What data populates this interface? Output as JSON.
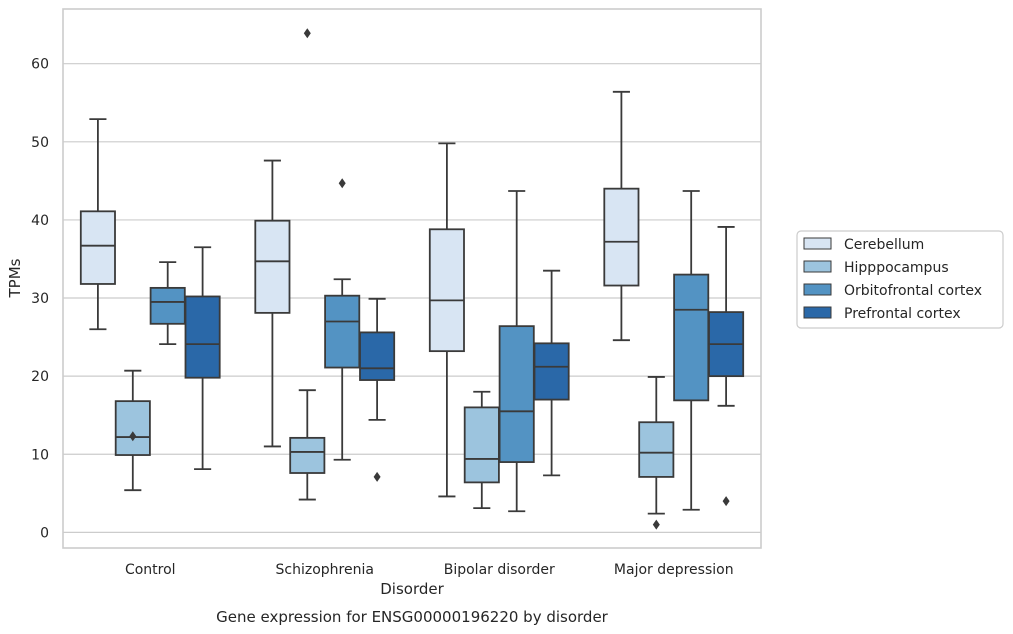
{
  "chart_data": {
    "type": "box",
    "title": "",
    "caption": "Gene expression for ENSG00000196220 by disorder",
    "xlabel": "Disorder",
    "ylabel": "TPMs",
    "ylim": [
      -2,
      67
    ],
    "yticks": [
      0,
      10,
      20,
      30,
      40,
      50,
      60
    ],
    "grid": "horizontal",
    "legend_position": "right",
    "categories": [
      "Control",
      "Schizophrenia",
      "Bipolar disorder",
      "Major depression"
    ],
    "series": [
      {
        "name": "Cerebellum",
        "color": "#d8e5f3",
        "boxes": [
          {
            "whisker_low": 26.0,
            "q1": 31.8,
            "median": 36.7,
            "q3": 41.1,
            "whisker_high": 52.9,
            "outliers": []
          },
          {
            "whisker_low": 11.0,
            "q1": 28.1,
            "median": 34.7,
            "q3": 39.9,
            "whisker_high": 47.6,
            "outliers": []
          },
          {
            "whisker_low": 4.6,
            "q1": 23.2,
            "median": 29.7,
            "q3": 38.8,
            "whisker_high": 49.8,
            "outliers": []
          },
          {
            "whisker_low": 24.6,
            "q1": 31.6,
            "median": 37.2,
            "q3": 44.0,
            "whisker_high": 56.4,
            "outliers": []
          }
        ]
      },
      {
        "name": "Hipppocampus",
        "color": "#9cc4de",
        "boxes": [
          {
            "whisker_low": 5.4,
            "q1": 9.9,
            "median": 12.2,
            "q3": 16.8,
            "whisker_high": 20.7,
            "outliers": [
              12.3
            ]
          },
          {
            "whisker_low": 4.2,
            "q1": 7.6,
            "median": 10.3,
            "q3": 12.1,
            "whisker_high": 18.2,
            "outliers": [
              63.9
            ]
          },
          {
            "whisker_low": 3.1,
            "q1": 6.4,
            "median": 9.4,
            "q3": 16.0,
            "whisker_high": 18.0,
            "outliers": []
          },
          {
            "whisker_low": 2.4,
            "q1": 7.1,
            "median": 10.2,
            "q3": 14.1,
            "whisker_high": 19.9,
            "outliers": [
              1.0
            ]
          }
        ]
      },
      {
        "name": "Orbitofrontal cortex",
        "color": "#5393c3",
        "boxes": [
          {
            "whisker_low": 24.1,
            "q1": 26.7,
            "median": 29.5,
            "q3": 31.3,
            "whisker_high": 34.6,
            "outliers": []
          },
          {
            "whisker_low": 9.3,
            "q1": 21.1,
            "median": 27.0,
            "q3": 30.3,
            "whisker_high": 32.4,
            "outliers": [
              44.7
            ]
          },
          {
            "whisker_low": 2.7,
            "q1": 9.0,
            "median": 15.5,
            "q3": 26.4,
            "whisker_high": 43.7,
            "outliers": []
          },
          {
            "whisker_low": 2.9,
            "q1": 16.9,
            "median": 28.5,
            "q3": 33.0,
            "whisker_high": 43.7,
            "outliers": []
          }
        ]
      },
      {
        "name": "Prefrontal cortex",
        "color": "#2a68a8",
        "boxes": [
          {
            "whisker_low": 8.1,
            "q1": 19.8,
            "median": 24.1,
            "q3": 30.2,
            "whisker_high": 36.5,
            "outliers": []
          },
          {
            "whisker_low": 14.4,
            "q1": 19.5,
            "median": 21.0,
            "q3": 25.6,
            "whisker_high": 29.9,
            "outliers": [
              7.1
            ]
          },
          {
            "whisker_low": 7.3,
            "q1": 17.0,
            "median": 21.2,
            "q3": 24.2,
            "whisker_high": 33.5,
            "outliers": []
          },
          {
            "whisker_low": 16.2,
            "q1": 20.0,
            "median": 24.1,
            "q3": 28.2,
            "whisker_high": 39.1,
            "outliers": [
              4.0
            ]
          }
        ]
      }
    ]
  }
}
